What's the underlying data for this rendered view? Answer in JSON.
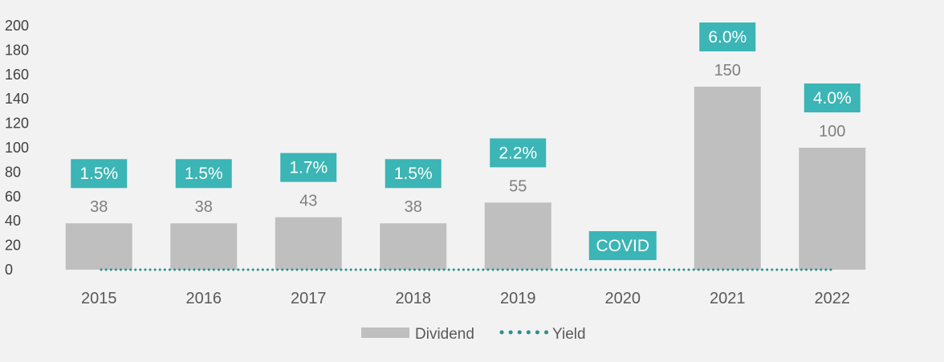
{
  "chart_data": {
    "type": "bar",
    "categories": [
      "2015",
      "2016",
      "2017",
      "2018",
      "2019",
      "2020",
      "2021",
      "2022"
    ],
    "series": [
      {
        "name": "Dividend",
        "type": "bar",
        "values": [
          38,
          38,
          43,
          38,
          55,
          null,
          150,
          100
        ],
        "color": "#bfbfbf"
      },
      {
        "name": "Yield",
        "type": "line",
        "style": "dotted",
        "values": [
          0,
          0,
          0,
          0,
          0,
          0,
          0,
          0
        ],
        "color": "#2f8f8f"
      }
    ],
    "data_labels": [
      "38",
      "38",
      "43",
      "38",
      "55",
      "",
      "150",
      "100"
    ],
    "yield_labels": [
      "1.5%",
      "1.5%",
      "1.7%",
      "1.5%",
      "2.2%",
      "COVID",
      "6.0%",
      "4.0%"
    ],
    "yield_label_color": "#3bb5b5",
    "yticks": [
      "0",
      "20",
      "40",
      "60",
      "80",
      "100",
      "120",
      "140",
      "160",
      "180",
      "200"
    ],
    "ylim": [
      0,
      200
    ],
    "grid": false,
    "legend_position": "bottom",
    "legend": [
      {
        "name": "Dividend",
        "marker": "bar"
      },
      {
        "name": "Yield",
        "marker": "dotted-line"
      }
    ],
    "title": "",
    "xlabel": "",
    "ylabel": ""
  }
}
